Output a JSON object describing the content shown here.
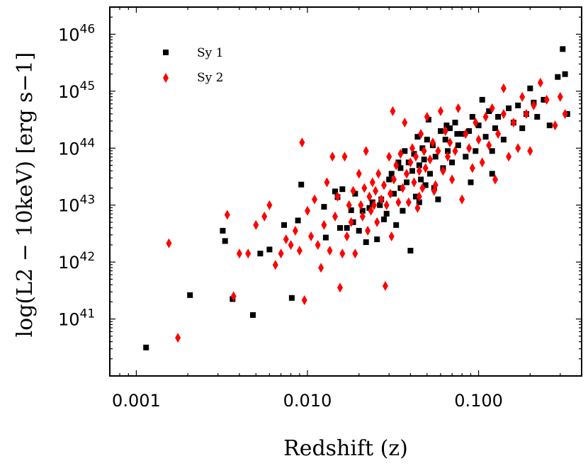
{
  "chart_data": {
    "type": "scatter",
    "xscale": "log",
    "yscale": "log",
    "xlim": [
      0.0007,
      0.4
    ],
    "ylim": [
      1e+40,
      3e+46
    ],
    "xlabel": "Redshift (z)",
    "ylabel": "log(L2 − 10keV) [erg s−1]",
    "x_ticks": [
      {
        "value": 0.001,
        "label": "0.001"
      },
      {
        "value": 0.01,
        "label": "0.010"
      },
      {
        "value": 0.1,
        "label": "0.100"
      }
    ],
    "y_ticks": [
      {
        "exp": 41,
        "base": "10",
        "sup": "41"
      },
      {
        "exp": 42,
        "base": "10",
        "sup": "42"
      },
      {
        "exp": 43,
        "base": "10",
        "sup": "43"
      },
      {
        "exp": 44,
        "base": "10",
        "sup": "44"
      },
      {
        "exp": 45,
        "base": "10",
        "sup": "45"
      },
      {
        "exp": 46,
        "base": "10",
        "sup": "46"
      }
    ],
    "legend_position": "top-left",
    "series": [
      {
        "name": "Sy 1",
        "marker": "square",
        "color": "#000000",
        "points": [
          [
            0.00114,
            40.5
          ],
          [
            0.00206,
            41.42
          ],
          [
            0.0032,
            42.55
          ],
          [
            0.0033,
            42.37
          ],
          [
            0.00365,
            41.35
          ],
          [
            0.0048,
            41.07
          ],
          [
            0.0053,
            42.15
          ],
          [
            0.006,
            42.22
          ],
          [
            0.0073,
            42.65
          ],
          [
            0.0081,
            41.37
          ],
          [
            0.0088,
            42.73
          ],
          [
            0.0092,
            43.36
          ],
          [
            0.0125,
            42.97
          ],
          [
            0.0128,
            42.43
          ],
          [
            0.0145,
            43.24
          ],
          [
            0.015,
            43.14
          ],
          [
            0.0155,
            42.6
          ],
          [
            0.016,
            43.28
          ],
          [
            0.017,
            42.6
          ],
          [
            0.018,
            42.91
          ],
          [
            0.019,
            43.2
          ],
          [
            0.02,
            42.55
          ],
          [
            0.021,
            42.9
          ],
          [
            0.022,
            42.35
          ],
          [
            0.023,
            42.95
          ],
          [
            0.024,
            43.05
          ],
          [
            0.0255,
            42.4
          ],
          [
            0.027,
            43.1
          ],
          [
            0.028,
            42.75
          ],
          [
            0.029,
            42.85
          ],
          [
            0.03,
            43.45
          ],
          [
            0.031,
            43.55
          ],
          [
            0.032,
            43.2
          ],
          [
            0.033,
            42.65
          ],
          [
            0.034,
            43.75
          ],
          [
            0.035,
            43.65
          ],
          [
            0.036,
            42.9
          ],
          [
            0.037,
            43.95
          ],
          [
            0.038,
            43.4
          ],
          [
            0.039,
            43.75
          ],
          [
            0.04,
            42.2
          ],
          [
            0.041,
            43.6
          ],
          [
            0.042,
            43.9
          ],
          [
            0.043,
            43.15
          ],
          [
            0.044,
            44.2
          ],
          [
            0.045,
            43.7
          ],
          [
            0.046,
            43.45
          ],
          [
            0.047,
            44.0
          ],
          [
            0.048,
            43.8
          ],
          [
            0.049,
            43.35
          ],
          [
            0.05,
            44.15
          ],
          [
            0.051,
            44.5
          ],
          [
            0.052,
            43.55
          ],
          [
            0.054,
            44.05
          ],
          [
            0.056,
            43.85
          ],
          [
            0.058,
            43.1
          ],
          [
            0.06,
            44.3
          ],
          [
            0.062,
            43.65
          ],
          [
            0.064,
            44.15
          ],
          [
            0.066,
            43.95
          ],
          [
            0.068,
            44.35
          ],
          [
            0.07,
            43.75
          ],
          [
            0.073,
            44.45
          ],
          [
            0.076,
            44.05
          ],
          [
            0.08,
            44.25
          ],
          [
            0.084,
            43.85
          ],
          [
            0.088,
            44.3
          ],
          [
            0.092,
            44.55
          ],
          [
            0.096,
            43.95
          ],
          [
            0.1,
            44.4
          ],
          [
            0.105,
            44.85
          ],
          [
            0.11,
            44.2
          ],
          [
            0.115,
            44.65
          ],
          [
            0.12,
            43.95
          ],
          [
            0.125,
            44.35
          ],
          [
            0.13,
            44.55
          ],
          [
            0.14,
            44.15
          ],
          [
            0.15,
            44.7
          ],
          [
            0.16,
            44.45
          ],
          [
            0.17,
            44.75
          ],
          [
            0.18,
            44.35
          ],
          [
            0.19,
            44.6
          ],
          [
            0.2,
            45.05
          ],
          [
            0.21,
            44.8
          ],
          [
            0.22,
            44.55
          ],
          [
            0.24,
            44.85
          ],
          [
            0.26,
            44.4
          ],
          [
            0.29,
            45.25
          ],
          [
            0.31,
            45.74
          ],
          [
            0.32,
            45.3
          ],
          [
            0.33,
            44.6
          ],
          [
            0.075,
            44.25
          ],
          [
            0.065,
            44.4
          ],
          [
            0.055,
            43.3
          ],
          [
            0.045,
            43.05
          ],
          [
            0.035,
            43.3
          ],
          [
            0.0265,
            43.0
          ],
          [
            0.0185,
            42.7
          ],
          [
            0.09,
            43.4
          ],
          [
            0.12,
            43.55
          ]
        ]
      },
      {
        "name": "Sy 2",
        "marker": "diamond",
        "color": "#ff0000",
        "points": [
          [
            0.00155,
            42.33
          ],
          [
            0.00175,
            40.67
          ],
          [
            0.0034,
            42.83
          ],
          [
            0.0037,
            41.4
          ],
          [
            0.004,
            42.15
          ],
          [
            0.0045,
            42.15
          ],
          [
            0.005,
            42.65
          ],
          [
            0.0056,
            42.8
          ],
          [
            0.006,
            43.0
          ],
          [
            0.0065,
            41.95
          ],
          [
            0.007,
            42.15
          ],
          [
            0.0075,
            42.4
          ],
          [
            0.008,
            42.3
          ],
          [
            0.0085,
            42.55
          ],
          [
            0.009,
            42.2
          ],
          [
            0.0093,
            44.1
          ],
          [
            0.0096,
            41.33
          ],
          [
            0.01,
            42.9
          ],
          [
            0.0105,
            42.45
          ],
          [
            0.011,
            43.1
          ],
          [
            0.0115,
            42.3
          ],
          [
            0.012,
            41.9
          ],
          [
            0.0125,
            42.65
          ],
          [
            0.013,
            43.4
          ],
          [
            0.0135,
            42.2
          ],
          [
            0.014,
            43.85
          ],
          [
            0.0145,
            42.8
          ],
          [
            0.015,
            43.15
          ],
          [
            0.0155,
            41.55
          ],
          [
            0.016,
            42.15
          ],
          [
            0.0165,
            43.85
          ],
          [
            0.017,
            42.45
          ],
          [
            0.0175,
            43.0
          ],
          [
            0.018,
            42.7
          ],
          [
            0.0185,
            43.25
          ],
          [
            0.019,
            42.15
          ],
          [
            0.02,
            43.55
          ],
          [
            0.0205,
            43.0
          ],
          [
            0.021,
            42.8
          ],
          [
            0.0215,
            43.3
          ],
          [
            0.022,
            43.95
          ],
          [
            0.0225,
            42.55
          ],
          [
            0.023,
            43.15
          ],
          [
            0.0235,
            42.9
          ],
          [
            0.024,
            43.4
          ],
          [
            0.0245,
            43.0
          ],
          [
            0.025,
            43.25
          ],
          [
            0.0255,
            42.7
          ],
          [
            0.026,
            43.55
          ],
          [
            0.027,
            43.1
          ],
          [
            0.028,
            43.35
          ],
          [
            0.0285,
            41.58
          ],
          [
            0.029,
            43.0
          ],
          [
            0.03,
            43.85
          ],
          [
            0.0305,
            43.2
          ],
          [
            0.031,
            42.45
          ],
          [
            0.0315,
            44.65
          ],
          [
            0.032,
            43.45
          ],
          [
            0.033,
            43.7
          ],
          [
            0.034,
            43.05
          ],
          [
            0.035,
            43.9
          ],
          [
            0.036,
            43.3
          ],
          [
            0.037,
            44.45
          ],
          [
            0.038,
            43.55
          ],
          [
            0.039,
            43.05
          ],
          [
            0.04,
            43.75
          ],
          [
            0.041,
            44.0
          ],
          [
            0.042,
            43.4
          ],
          [
            0.043,
            43.85
          ],
          [
            0.044,
            42.95
          ],
          [
            0.045,
            43.6
          ],
          [
            0.046,
            44.25
          ],
          [
            0.047,
            43.3
          ],
          [
            0.048,
            43.95
          ],
          [
            0.049,
            43.65
          ],
          [
            0.05,
            44.55
          ],
          [
            0.052,
            43.8
          ],
          [
            0.054,
            44.1
          ],
          [
            0.056,
            43.35
          ],
          [
            0.058,
            43.95
          ],
          [
            0.06,
            44.65
          ],
          [
            0.062,
            43.6
          ],
          [
            0.064,
            44.3
          ],
          [
            0.066,
            43.85
          ],
          [
            0.068,
            44.1
          ],
          [
            0.07,
            43.45
          ],
          [
            0.073,
            43.95
          ],
          [
            0.076,
            44.7
          ],
          [
            0.08,
            43.1
          ],
          [
            0.084,
            44.25
          ],
          [
            0.088,
            44.0
          ],
          [
            0.092,
            43.65
          ],
          [
            0.096,
            44.45
          ],
          [
            0.1,
            44.15
          ],
          [
            0.105,
            43.75
          ],
          [
            0.11,
            44.55
          ],
          [
            0.115,
            44.05
          ],
          [
            0.12,
            44.7
          ],
          [
            0.125,
            43.45
          ],
          [
            0.13,
            44.25
          ],
          [
            0.14,
            44.6
          ],
          [
            0.15,
            43.85
          ],
          [
            0.16,
            44.45
          ],
          [
            0.17,
            44.0
          ],
          [
            0.18,
            44.9
          ],
          [
            0.19,
            44.6
          ],
          [
            0.2,
            43.95
          ],
          [
            0.21,
            44.75
          ],
          [
            0.23,
            45.15
          ],
          [
            0.25,
            44.85
          ],
          [
            0.28,
            44.4
          ],
          [
            0.3,
            44.9
          ],
          [
            0.32,
            44.6
          ],
          [
            0.14,
            45.05
          ],
          [
            0.055,
            43.25
          ],
          [
            0.045,
            43.15
          ]
        ]
      }
    ]
  }
}
